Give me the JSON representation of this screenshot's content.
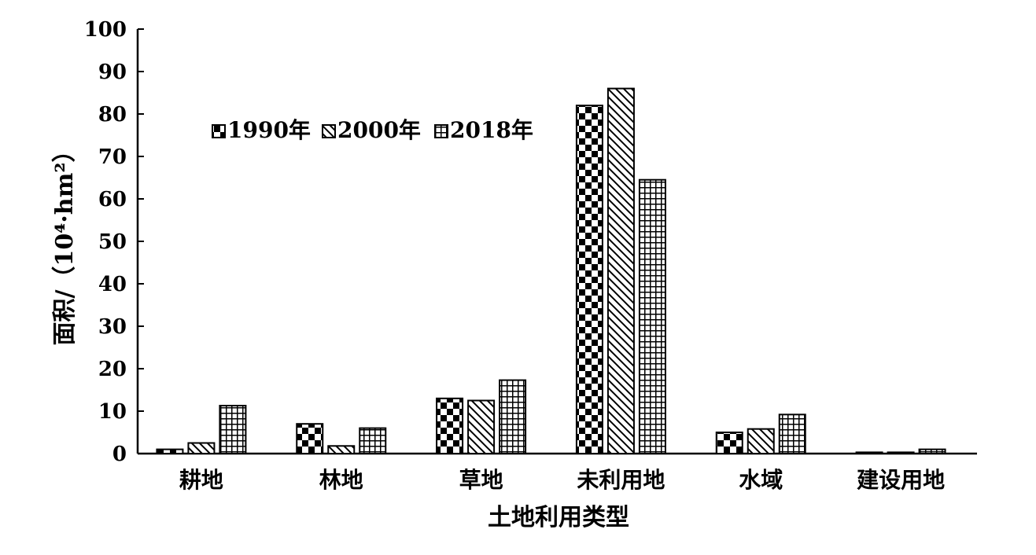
{
  "chart_data": {
    "type": "bar",
    "xlabel": "土地利用类型",
    "ylabel": "面积/（10⁴·hm²）",
    "ylim": [
      0,
      100
    ],
    "yticks": [
      0,
      10,
      20,
      30,
      40,
      50,
      60,
      70,
      80,
      90,
      100
    ],
    "categories": [
      "耕地",
      "林地",
      "草地",
      "未利用地",
      "水域",
      "建设用地"
    ],
    "series": [
      {
        "name": "1990年",
        "pattern": "checker",
        "values": [
          1.0,
          7.0,
          13.0,
          82.0,
          5.0,
          0.3
        ]
      },
      {
        "name": "2000年",
        "pattern": "diagonal",
        "values": [
          2.5,
          1.8,
          12.5,
          86.0,
          5.8,
          0.3
        ]
      },
      {
        "name": "2018年",
        "pattern": "grid",
        "values": [
          11.3,
          6.0,
          17.3,
          64.5,
          9.2,
          1.0
        ]
      }
    ],
    "legend": "top-left",
    "grid": false
  }
}
